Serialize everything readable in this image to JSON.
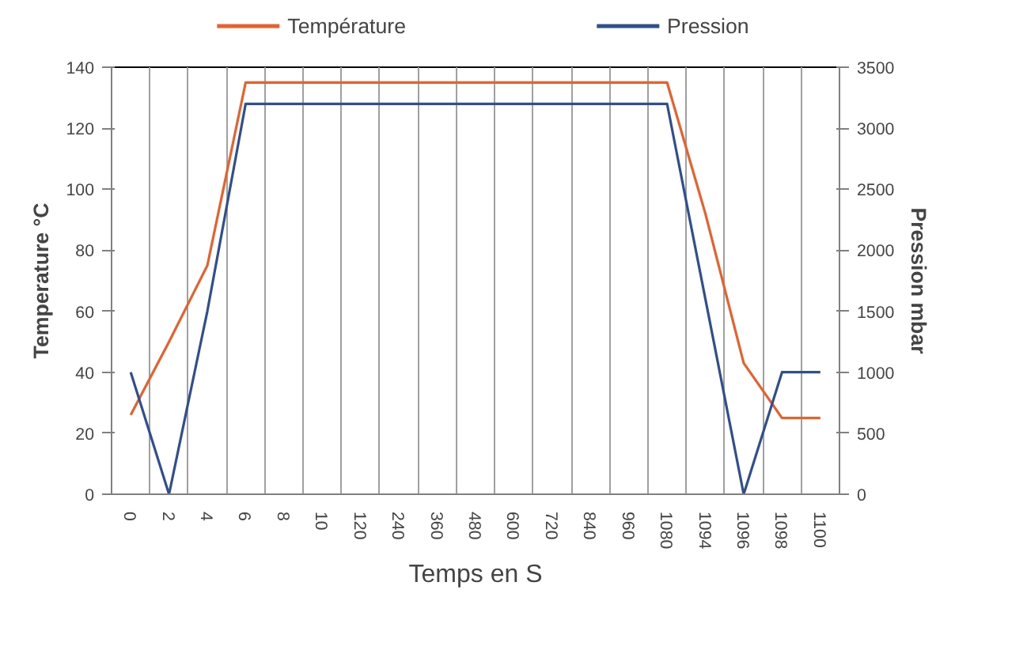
{
  "chart_data": {
    "type": "line",
    "xlabel": "Temps en S",
    "ylabel": "Temperature °C",
    "y2label": "Pression mbar",
    "categories": [
      "0",
      "2",
      "4",
      "6",
      "8",
      "10",
      "120",
      "240",
      "360",
      "480",
      "600",
      "720",
      "840",
      "960",
      "1080",
      "1094",
      "1096",
      "1098",
      "1100"
    ],
    "series": [
      {
        "name": "Température",
        "color": "#e8602c",
        "values": [
          26,
          50,
          75,
          135,
          135,
          135,
          135,
          135,
          135,
          135,
          135,
          135,
          135,
          135,
          135,
          92,
          43,
          25,
          25
        ]
      },
      {
        "name": "Pression",
        "color": "#2f4f8f",
        "axis": "y2",
        "values": [
          1000,
          0,
          1500,
          3200,
          3200,
          3200,
          3200,
          3200,
          3200,
          3200,
          3200,
          3200,
          3200,
          3200,
          3200,
          1600,
          0,
          1000,
          1000
        ]
      }
    ],
    "ylim": [
      0,
      140
    ],
    "yticks": [
      0,
      20,
      40,
      60,
      80,
      100,
      120,
      140
    ],
    "y2lim": [
      0,
      3500
    ],
    "y2ticks": [
      0,
      500,
      1000,
      1500,
      2000,
      2500,
      3000,
      3500
    ],
    "grid": "x",
    "legend": "top",
    "marker": "none"
  }
}
